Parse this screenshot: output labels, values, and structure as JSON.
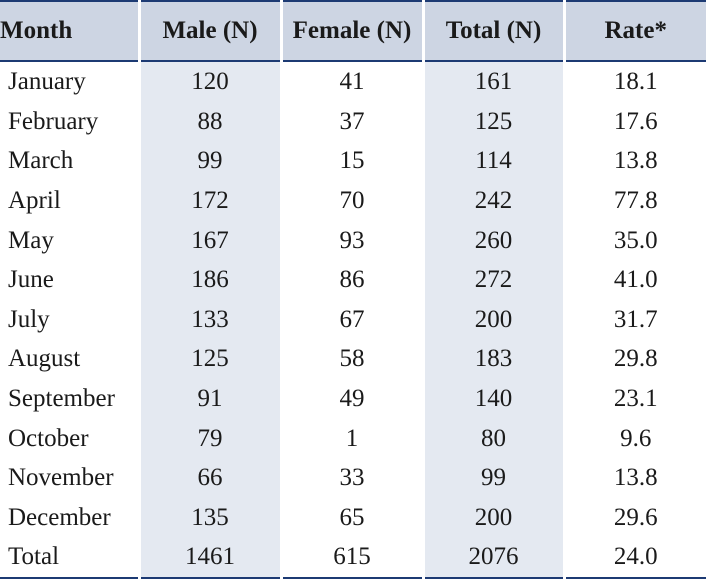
{
  "table": {
    "headers": {
      "month": "Month",
      "male": "Male (N)",
      "female": "Female (N)",
      "total": "Total (N)",
      "rate": "Rate*"
    },
    "rows": [
      {
        "month": "January",
        "male": "120",
        "female": "41",
        "total": "161",
        "rate": "18.1"
      },
      {
        "month": "February",
        "male": "88",
        "female": "37",
        "total": "125",
        "rate": "17.6"
      },
      {
        "month": "March",
        "male": "99",
        "female": "15",
        "total": "114",
        "rate": "13.8"
      },
      {
        "month": "April",
        "male": "172",
        "female": "70",
        "total": "242",
        "rate": "77.8"
      },
      {
        "month": "May",
        "male": "167",
        "female": "93",
        "total": "260",
        "rate": "35.0"
      },
      {
        "month": "June",
        "male": "186",
        "female": "86",
        "total": "272",
        "rate": "41.0"
      },
      {
        "month": "July",
        "male": "133",
        "female": "67",
        "total": "200",
        "rate": "31.7"
      },
      {
        "month": "August",
        "male": "125",
        "female": "58",
        "total": "183",
        "rate": "29.8"
      },
      {
        "month": "September",
        "male": "91",
        "female": "49",
        "total": "140",
        "rate": "23.1"
      },
      {
        "month": "October",
        "male": "79",
        "female": "1",
        "total": "80",
        "rate": "9.6"
      },
      {
        "month": "November",
        "male": "66",
        "female": "33",
        "total": "99",
        "rate": "13.8"
      },
      {
        "month": "December",
        "male": "135",
        "female": "65",
        "total": "200",
        "rate": "29.6"
      },
      {
        "month": "Total",
        "male": "1461",
        "female": "615",
        "total": "2076",
        "rate": "24.0"
      }
    ]
  },
  "colors": {
    "header_bg": "#cdd5e3",
    "shaded_column_bg": "#e4e9f1",
    "rule": "#1c3a73"
  }
}
